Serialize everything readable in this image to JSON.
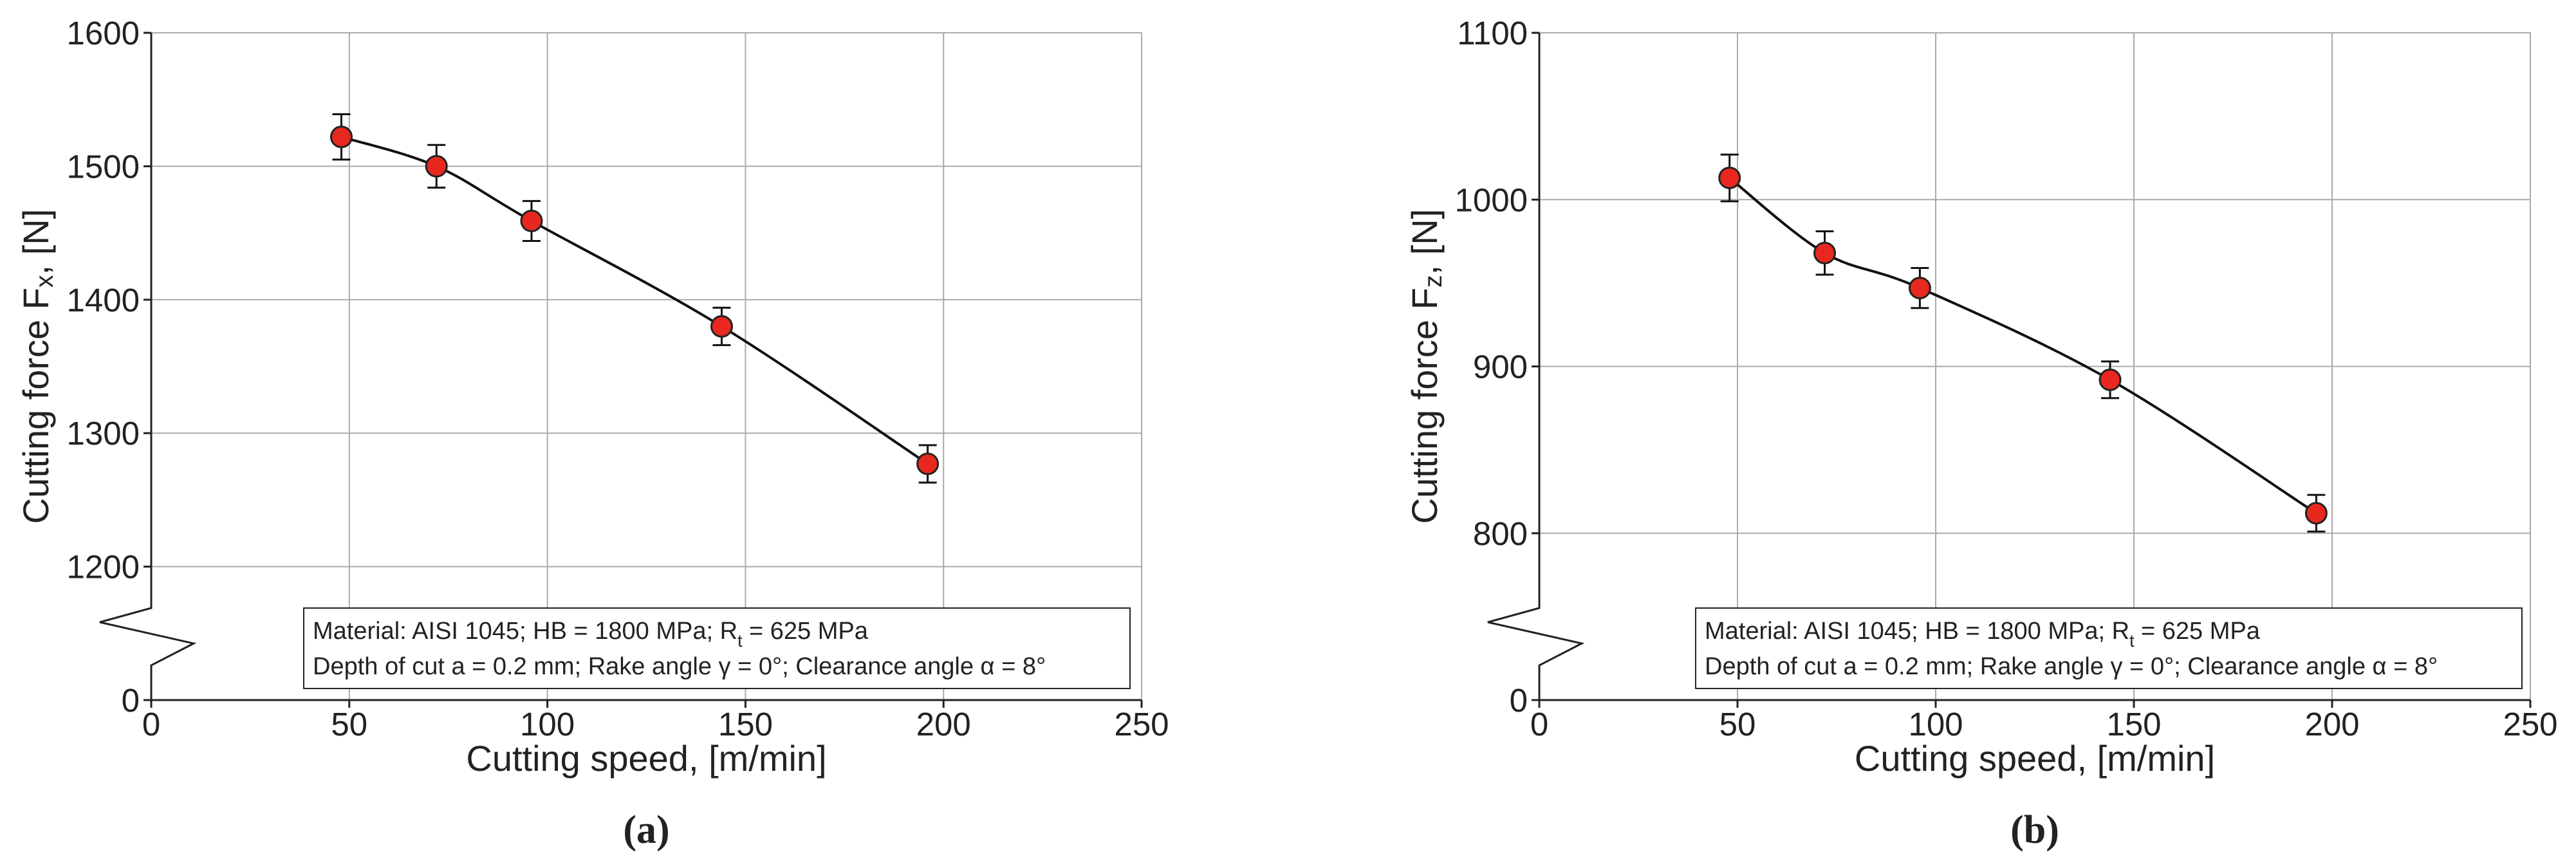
{
  "chart_data": [
    {
      "type": "line",
      "panel_label": "(a)",
      "y_label_parts": [
        "Cutting force F",
        "x",
        ", [N]"
      ],
      "x_label": "Cutting speed, [m/min]",
      "annotation_lines": [
        [
          "Material: AISI 1045; HB = 1800 MPa; R",
          "t",
          " = 625 MPa"
        ],
        [
          "Depth of cut a = 0.2 mm; Rake angle γ = 0°; Clearance angle α = 8°"
        ]
      ],
      "x": [
        48,
        72,
        96,
        144,
        196
      ],
      "series": [
        {
          "color": "#e8281e",
          "values": [
            1522,
            1500,
            1459,
            1380,
            1277
          ],
          "errors": [
            17,
            16,
            15,
            14,
            14
          ]
        }
      ],
      "xlim": [
        0,
        250
      ],
      "xticks": [
        0,
        50,
        100,
        150,
        200,
        250
      ],
      "ylim": [
        0,
        1600
      ],
      "yticks": [
        0,
        1200,
        1300,
        1400,
        1500,
        1600
      ],
      "axis_break": true,
      "grid": true
    },
    {
      "type": "line",
      "panel_label": "(b)",
      "y_label_parts": [
        "Cutting force F",
        "z",
        ", [N]"
      ],
      "x_label": "Cutting speed, [m/min]",
      "annotation_lines": [
        [
          "Material: AISI 1045; HB = 1800 MPa; R",
          "t",
          " = 625 MPa"
        ],
        [
          "Depth of cut a = 0.2 mm; Rake angle γ = 0°; Clearance angle α = 8°"
        ]
      ],
      "x": [
        48,
        72,
        96,
        144,
        196
      ],
      "series": [
        {
          "color": "#e8281e",
          "values": [
            1013,
            968,
            947,
            892,
            812
          ],
          "errors": [
            14,
            13,
            12,
            11,
            11
          ]
        }
      ],
      "xlim": [
        0,
        250
      ],
      "xticks": [
        0,
        50,
        100,
        150,
        200,
        250
      ],
      "ylim": [
        0,
        1100
      ],
      "yticks": [
        0,
        800,
        900,
        1000,
        1100
      ],
      "axis_break": true,
      "grid": true
    }
  ]
}
